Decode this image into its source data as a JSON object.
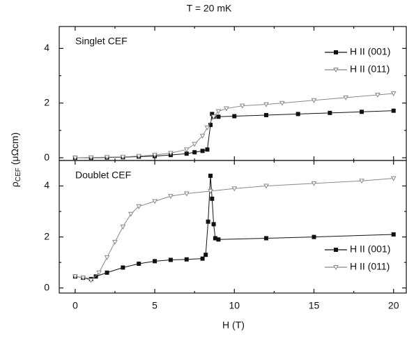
{
  "chart_data": [
    {
      "type": "line",
      "title": "T = 20 mK",
      "panel_label": "Singlet CEF",
      "ylabel": {
        "symbol": "ρ",
        "subscript": "CEF",
        "unit": "(μΩcm)"
      },
      "xlim": [
        -1,
        20.8
      ],
      "xticks": [
        0,
        5,
        10,
        15,
        20
      ],
      "xminorticks": [
        2.5,
        7.5,
        12.5,
        17.5
      ],
      "ylim": [
        -0.1,
        4.8
      ],
      "yticks": [
        0,
        2,
        4
      ],
      "yminorticks": [
        1,
        3
      ],
      "legend": "upper right",
      "series": [
        {
          "name": "H II (001)",
          "color": "#111111",
          "marker": "square",
          "marker_filled": true,
          "x": [
            0,
            1,
            2,
            3,
            4,
            5,
            6,
            7,
            7.5,
            8,
            8.3,
            8.5,
            8.6,
            8.7,
            9,
            10,
            12,
            14,
            16,
            18,
            20
          ],
          "values": [
            0,
            0,
            0.01,
            0.02,
            0.04,
            0.06,
            0.1,
            0.15,
            0.2,
            0.25,
            0.3,
            1.2,
            1.6,
            1.5,
            1.5,
            1.52,
            1.56,
            1.6,
            1.64,
            1.68,
            1.72
          ]
        },
        {
          "name": "H II (011)",
          "color": "#888888",
          "marker": "triangle-down",
          "marker_filled": false,
          "x": [
            0,
            1,
            2,
            3,
            4,
            5,
            6,
            7,
            7.5,
            8,
            8.3,
            8.7,
            9,
            9.5,
            10.5,
            12,
            13,
            15,
            17,
            19,
            20
          ],
          "values": [
            0,
            0.01,
            0.02,
            0.03,
            0.06,
            0.1,
            0.17,
            0.3,
            0.5,
            0.8,
            1.1,
            1.5,
            1.7,
            1.8,
            1.9,
            1.95,
            2.0,
            2.1,
            2.2,
            2.3,
            2.35
          ]
        }
      ]
    },
    {
      "type": "line",
      "panel_label": "Doublet CEF",
      "xlabel": "H (T)",
      "xlim": [
        -1,
        20.8
      ],
      "xticks": [
        0,
        5,
        10,
        15,
        20
      ],
      "xminorticks": [
        2.5,
        7.5,
        12.5,
        17.5
      ],
      "ylim": [
        -0.2,
        5
      ],
      "yticks": [
        0,
        2,
        4
      ],
      "yminorticks": [
        1,
        3
      ],
      "legend": "lower right",
      "series": [
        {
          "name": "H II (001)",
          "color": "#111111",
          "marker": "square",
          "marker_filled": true,
          "x": [
            0,
            0.5,
            1,
            1.3,
            2,
            3,
            4,
            5,
            6,
            7,
            8,
            8.2,
            8.35,
            8.5,
            8.6,
            8.7,
            8.8,
            9,
            12,
            15,
            20
          ],
          "values": [
            0.45,
            0.4,
            0.35,
            0.45,
            0.6,
            0.8,
            0.95,
            1.05,
            1.1,
            1.12,
            1.15,
            1.3,
            2.6,
            4.4,
            3.5,
            2.5,
            1.95,
            1.9,
            1.95,
            2.0,
            2.1
          ]
        },
        {
          "name": "H II (011)",
          "color": "#888888",
          "marker": "triangle-down",
          "marker_filled": false,
          "x": [
            0,
            0.5,
            1,
            1.5,
            2,
            2.5,
            3,
            3.5,
            4,
            5,
            6,
            7,
            8.5,
            10,
            12,
            15,
            18,
            20
          ],
          "values": [
            0.45,
            0.4,
            0.3,
            0.6,
            1.2,
            1.8,
            2.4,
            2.9,
            3.2,
            3.4,
            3.6,
            3.7,
            3.8,
            3.9,
            4.0,
            4.1,
            4.2,
            4.3
          ]
        }
      ]
    }
  ]
}
